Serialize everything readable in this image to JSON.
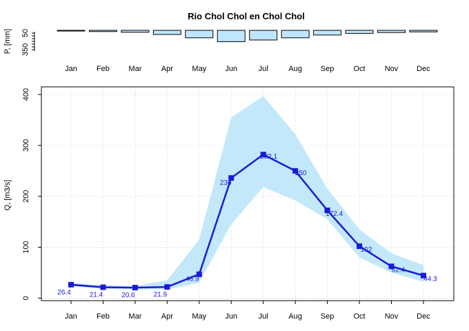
{
  "chart_data": {
    "title": "Rio Chol Chol en Chol Chol",
    "months": [
      "Jan",
      "Feb",
      "Mar",
      "Apr",
      "May",
      "Jun",
      "Jul",
      "Aug",
      "Sep",
      "Oct",
      "Nov",
      "Dec"
    ],
    "precipitation": {
      "type": "bar",
      "ylabel": "P, [mm]",
      "inverted": true,
      "y_ticks": [
        50,
        350
      ],
      "ylim": [
        0,
        400
      ],
      "values": [
        5,
        22,
        35,
        75,
        135,
        205,
        175,
        135,
        85,
        55,
        40,
        28
      ],
      "color": "#bfe6ff"
    },
    "discharge": {
      "type": "line",
      "ylabel": "Q, [m3/s]",
      "ylim": [
        -5,
        415
      ],
      "y_ticks": [
        0,
        100,
        200,
        300,
        400
      ],
      "grid": true,
      "values": [
        26.4,
        21.4,
        20.6,
        21.9,
        46.9,
        236,
        282.1,
        250,
        172.4,
        102,
        62.4,
        44.3
      ],
      "labels": [
        "26.4",
        "21.4",
        "20.6",
        "21.9",
        "46.9",
        "236",
        "282.1",
        "250",
        "172.4",
        "102",
        "62.4",
        "44.3"
      ],
      "band_upper": [
        30,
        25,
        24,
        35,
        115,
        355,
        397,
        322,
        215,
        135,
        88,
        65
      ],
      "band_lower": [
        23,
        18,
        17,
        17,
        30,
        145,
        218,
        192,
        155,
        80,
        50,
        32
      ],
      "line_color": "#1a1ad6",
      "band_color": "#c2e8fa",
      "marker": "square"
    }
  }
}
